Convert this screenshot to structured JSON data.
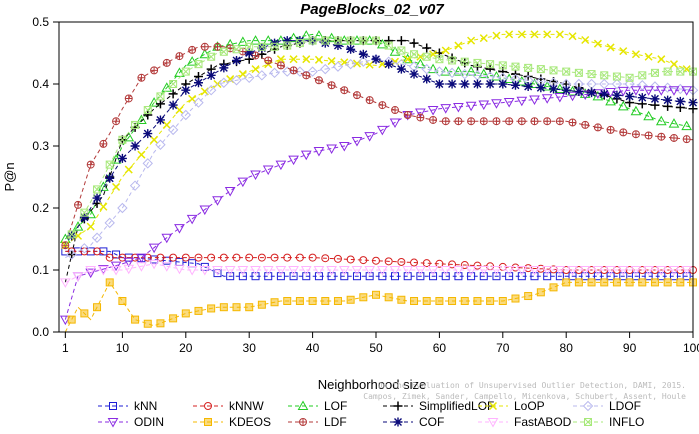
{
  "chart_data": {
    "type": "line",
    "title": "PageBlocks_02_v07",
    "xlabel": "Neighborhood size",
    "ylabel": "P@n",
    "xlim": [
      0,
      100
    ],
    "ylim": [
      0,
      0.5
    ],
    "xticks": [
      1,
      10,
      20,
      30,
      40,
      50,
      60,
      70,
      80,
      90,
      100
    ],
    "yticks": [
      0.0,
      0.1,
      0.2,
      0.3,
      0.4,
      0.5
    ],
    "watermark": [
      "Campos, Zimek, Sander, Campello, Micenkova, Schubert, Assent, Houle",
      "On the Evaluation of Unsupervised Outlier Detection, DAMI, 2015."
    ],
    "legend_position": "bottom",
    "series": [
      {
        "name": "kNN",
        "color": "#1f1fd6",
        "marker": "square",
        "dash": "4,3",
        "points": [
          [
            1,
            0.13
          ],
          [
            8,
            0.13
          ],
          [
            10,
            0.12
          ],
          [
            12,
            0.12
          ],
          [
            22,
            0.11
          ],
          [
            24,
            0.1
          ],
          [
            26,
            0.09
          ],
          [
            30,
            0.09
          ],
          [
            50,
            0.09
          ],
          [
            70,
            0.09
          ],
          [
            90,
            0.09
          ],
          [
            100,
            0.09
          ]
        ]
      },
      {
        "name": "kNNW",
        "color": "#d62020",
        "marker": "circle",
        "dash": "4,3",
        "points": [
          [
            1,
            0.13
          ],
          [
            6,
            0.13
          ],
          [
            8,
            0.12
          ],
          [
            12,
            0.12
          ],
          [
            24,
            0.12
          ],
          [
            40,
            0.12
          ],
          [
            60,
            0.11
          ],
          [
            80,
            0.1
          ],
          [
            100,
            0.1
          ]
        ]
      },
      {
        "name": "LOF",
        "color": "#22cc22",
        "marker": "triangle",
        "dash": "4,3",
        "points": [
          [
            1,
            0.15
          ],
          [
            5,
            0.19
          ],
          [
            10,
            0.3
          ],
          [
            15,
            0.37
          ],
          [
            20,
            0.43
          ],
          [
            25,
            0.46
          ],
          [
            30,
            0.47
          ],
          [
            35,
            0.47
          ],
          [
            40,
            0.48
          ],
          [
            45,
            0.47
          ],
          [
            50,
            0.47
          ],
          [
            55,
            0.44
          ],
          [
            60,
            0.42
          ],
          [
            65,
            0.42
          ],
          [
            70,
            0.41
          ],
          [
            80,
            0.39
          ],
          [
            85,
            0.38
          ],
          [
            90,
            0.36
          ],
          [
            95,
            0.34
          ],
          [
            100,
            0.33
          ]
        ]
      },
      {
        "name": "SimplifiedLOF",
        "color": "#000000",
        "marker": "plus",
        "dash": "4,3",
        "points": [
          [
            1,
            0.08
          ],
          [
            3,
            0.17
          ],
          [
            7,
            0.22
          ],
          [
            10,
            0.31
          ],
          [
            15,
            0.36
          ],
          [
            20,
            0.4
          ],
          [
            25,
            0.43
          ],
          [
            30,
            0.44
          ],
          [
            35,
            0.46
          ],
          [
            40,
            0.47
          ],
          [
            45,
            0.47
          ],
          [
            50,
            0.47
          ],
          [
            55,
            0.47
          ],
          [
            60,
            0.45
          ],
          [
            65,
            0.43
          ],
          [
            70,
            0.42
          ],
          [
            80,
            0.4
          ],
          [
            90,
            0.37
          ],
          [
            100,
            0.36
          ]
        ]
      },
      {
        "name": "LoOP",
        "color": "#e6e600",
        "marker": "x",
        "dash": "4,3",
        "points": [
          [
            1,
            0.14
          ],
          [
            5,
            0.17
          ],
          [
            10,
            0.25
          ],
          [
            15,
            0.31
          ],
          [
            20,
            0.37
          ],
          [
            25,
            0.4
          ],
          [
            30,
            0.42
          ],
          [
            35,
            0.44
          ],
          [
            40,
            0.44
          ],
          [
            50,
            0.43
          ],
          [
            55,
            0.44
          ],
          [
            60,
            0.45
          ],
          [
            65,
            0.47
          ],
          [
            70,
            0.48
          ],
          [
            80,
            0.48
          ],
          [
            90,
            0.45
          ],
          [
            95,
            0.44
          ],
          [
            100,
            0.42
          ]
        ]
      },
      {
        "name": "LDOF",
        "color": "#b9b9ee",
        "marker": "diamond",
        "dash": "4,3",
        "points": [
          [
            1,
            0.12
          ],
          [
            5,
            0.14
          ],
          [
            10,
            0.2
          ],
          [
            15,
            0.29
          ],
          [
            20,
            0.35
          ],
          [
            25,
            0.4
          ],
          [
            30,
            0.41
          ],
          [
            35,
            0.42
          ],
          [
            40,
            0.42
          ],
          [
            50,
            0.44
          ],
          [
            55,
            0.43
          ],
          [
            60,
            0.42
          ],
          [
            70,
            0.41
          ],
          [
            80,
            0.4
          ],
          [
            90,
            0.4
          ],
          [
            100,
            0.39
          ]
        ]
      },
      {
        "name": "ODIN",
        "color": "#8a2be2",
        "marker": "triangle-down",
        "dash": "4,3",
        "points": [
          [
            1,
            0.02
          ],
          [
            3,
            0.09
          ],
          [
            10,
            0.11
          ],
          [
            13,
            0.12
          ],
          [
            18,
            0.16
          ],
          [
            22,
            0.19
          ],
          [
            26,
            0.22
          ],
          [
            30,
            0.25
          ],
          [
            35,
            0.27
          ],
          [
            40,
            0.29
          ],
          [
            45,
            0.3
          ],
          [
            50,
            0.32
          ],
          [
            55,
            0.35
          ],
          [
            60,
            0.36
          ],
          [
            70,
            0.37
          ],
          [
            80,
            0.38
          ],
          [
            90,
            0.39
          ],
          [
            100,
            0.39
          ]
        ]
      },
      {
        "name": "KDEOS",
        "color": "#f5b800",
        "marker": "square-filled",
        "dash": "4,3",
        "points": [
          [
            1,
            0.0
          ],
          [
            3,
            0.04
          ],
          [
            5,
            0.02
          ],
          [
            8,
            0.08
          ],
          [
            10,
            0.05
          ],
          [
            12,
            0.02
          ],
          [
            15,
            0.01
          ],
          [
            20,
            0.03
          ],
          [
            25,
            0.04
          ],
          [
            30,
            0.04
          ],
          [
            35,
            0.05
          ],
          [
            45,
            0.05
          ],
          [
            50,
            0.06
          ],
          [
            55,
            0.05
          ],
          [
            70,
            0.05
          ],
          [
            75,
            0.06
          ],
          [
            80,
            0.08
          ],
          [
            100,
            0.08
          ]
        ]
      },
      {
        "name": "LDF",
        "color": "#b33a3a",
        "marker": "circle-plus",
        "dash": "4,3",
        "points": [
          [
            1,
            0.14
          ],
          [
            5,
            0.27
          ],
          [
            8,
            0.32
          ],
          [
            10,
            0.36
          ],
          [
            13,
            0.41
          ],
          [
            18,
            0.44
          ],
          [
            22,
            0.46
          ],
          [
            26,
            0.46
          ],
          [
            30,
            0.45
          ],
          [
            35,
            0.43
          ],
          [
            40,
            0.41
          ],
          [
            45,
            0.39
          ],
          [
            50,
            0.37
          ],
          [
            55,
            0.35
          ],
          [
            60,
            0.34
          ],
          [
            70,
            0.34
          ],
          [
            80,
            0.34
          ],
          [
            90,
            0.32
          ],
          [
            100,
            0.31
          ]
        ]
      },
      {
        "name": "COF",
        "color": "#0a0a7a",
        "marker": "star",
        "dash": "4,3",
        "points": [
          [
            1,
            0.14
          ],
          [
            5,
            0.2
          ],
          [
            10,
            0.28
          ],
          [
            15,
            0.33
          ],
          [
            20,
            0.39
          ],
          [
            25,
            0.42
          ],
          [
            30,
            0.45
          ],
          [
            35,
            0.47
          ],
          [
            40,
            0.47
          ],
          [
            45,
            0.46
          ],
          [
            50,
            0.44
          ],
          [
            55,
            0.42
          ],
          [
            60,
            0.4
          ],
          [
            70,
            0.4
          ],
          [
            80,
            0.39
          ],
          [
            90,
            0.38
          ],
          [
            100,
            0.37
          ]
        ]
      },
      {
        "name": "FastABOD",
        "color": "#ffb3ff",
        "marker": "triangle-down",
        "dash": "4,3",
        "points": [
          [
            1,
            0.08
          ],
          [
            5,
            0.1
          ],
          [
            10,
            0.1
          ],
          [
            15,
            0.11
          ],
          [
            20,
            0.1
          ],
          [
            30,
            0.1
          ],
          [
            50,
            0.1
          ],
          [
            70,
            0.1
          ],
          [
            90,
            0.1
          ],
          [
            100,
            0.1
          ]
        ]
      },
      {
        "name": "INFLO",
        "color": "#a7e87a",
        "marker": "square-x",
        "dash": "4,3",
        "points": [
          [
            1,
            0.14
          ],
          [
            5,
            0.21
          ],
          [
            10,
            0.31
          ],
          [
            15,
            0.37
          ],
          [
            20,
            0.42
          ],
          [
            25,
            0.45
          ],
          [
            30,
            0.46
          ],
          [
            35,
            0.46
          ],
          [
            40,
            0.47
          ],
          [
            45,
            0.47
          ],
          [
            50,
            0.47
          ],
          [
            55,
            0.45
          ],
          [
            60,
            0.44
          ],
          [
            70,
            0.43
          ],
          [
            80,
            0.42
          ],
          [
            90,
            0.41
          ],
          [
            95,
            0.42
          ],
          [
            100,
            0.42
          ]
        ]
      }
    ]
  }
}
